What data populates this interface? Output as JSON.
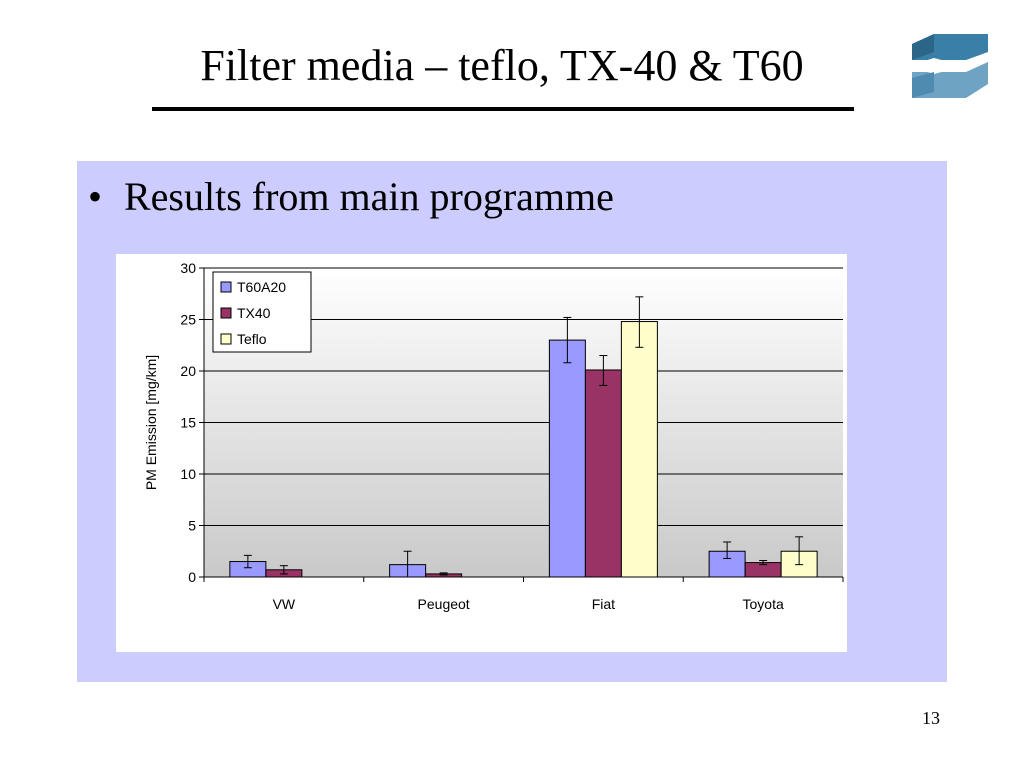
{
  "slide": {
    "title": "Filter media – teflo, TX-40 & T60",
    "bullet": "Results from main programme",
    "page_number": "13",
    "logo_icon": "company-logo-icon"
  },
  "colors": {
    "panel_bg": "#ccccff",
    "series": [
      "#9999ff",
      "#993366",
      "#ffffcc"
    ]
  },
  "chart_data": {
    "type": "bar",
    "title": "",
    "xlabel": "",
    "ylabel": "PM Emission [mg/km]",
    "ylim": [
      0,
      30
    ],
    "yticks": [
      0,
      5,
      10,
      15,
      20,
      25,
      30
    ],
    "categories": [
      "VW",
      "Peugeot",
      "Fiat",
      "Toyota"
    ],
    "series": [
      {
        "name": "T60A20",
        "values": [
          1.5,
          1.2,
          23.0,
          2.5
        ],
        "err_low": [
          0.6,
          1.2,
          2.2,
          0.7
        ],
        "err_high": [
          0.6,
          1.3,
          2.2,
          0.9
        ]
      },
      {
        "name": "TX40",
        "values": [
          0.7,
          0.3,
          20.1,
          1.4
        ],
        "err_low": [
          0.4,
          0.1,
          1.5,
          0.2
        ],
        "err_high": [
          0.4,
          0.1,
          1.4,
          0.2
        ]
      },
      {
        "name": "Teflo",
        "values": [
          0.0,
          0.0,
          24.8,
          2.5
        ],
        "err_low": [
          0.0,
          0.0,
          2.5,
          1.3
        ],
        "err_high": [
          0.0,
          0.0,
          2.4,
          1.4
        ]
      }
    ],
    "grid": true,
    "legend_position": "top-left"
  }
}
